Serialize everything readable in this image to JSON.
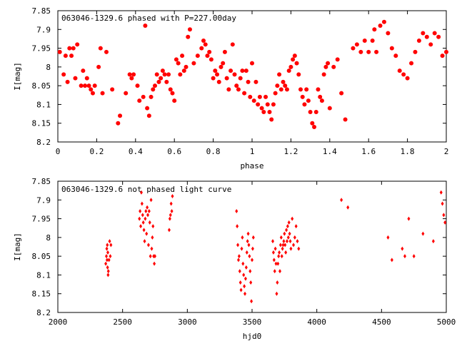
{
  "chart_data": [
    {
      "type": "scatter",
      "title": "063046-1329.6 phased with P=227.00day",
      "xlabel": "phase",
      "ylabel": "I[mag]",
      "xlim": [
        0,
        2
      ],
      "ylim": [
        8.2,
        7.85
      ],
      "y_inverted": true,
      "marker": "filled-circle",
      "color": "#ff0000",
      "xticks": [
        "0",
        "0.2",
        "0.4",
        "0.6",
        "0.8",
        "1",
        "1.2",
        "1.4",
        "1.6",
        "1.8",
        "2"
      ],
      "xtick_values": [
        0,
        0.2,
        0.4,
        0.6,
        0.8,
        1.0,
        1.2,
        1.4,
        1.6,
        1.8,
        2.0
      ],
      "yticks": [
        "7.85",
        "7.9",
        "7.95",
        "8",
        "8.05",
        "8.1",
        "8.15",
        "8.2"
      ],
      "ytick_values": [
        7.85,
        7.9,
        7.95,
        8.0,
        8.05,
        8.1,
        8.15,
        8.2
      ],
      "x": [
        0.01,
        0.03,
        0.04,
        0.05,
        0.06,
        0.07,
        0.08,
        0.09,
        0.1,
        0.12,
        0.13,
        0.14,
        0.15,
        0.16,
        0.17,
        0.18,
        0.19,
        0.21,
        0.22,
        0.23,
        0.25,
        0.28,
        0.31,
        0.32,
        0.35,
        0.37,
        0.38,
        0.39,
        0.41,
        0.42,
        0.44,
        0.45,
        0.46,
        0.47,
        0.48,
        0.49,
        0.5,
        0.51,
        0.52,
        0.53,
        0.54,
        0.55,
        0.56,
        0.57,
        0.58,
        0.59,
        0.6,
        0.61,
        0.62,
        0.63,
        0.64,
        0.65,
        0.66,
        0.67,
        0.68,
        0.7,
        0.72,
        0.74,
        0.75,
        0.76,
        0.77,
        0.78,
        0.79,
        0.8,
        0.81,
        0.82,
        0.83,
        0.84,
        0.85,
        0.86,
        0.87,
        0.88,
        0.89,
        0.9,
        0.91,
        0.92,
        0.93,
        0.94,
        0.95,
        0.96,
        0.97,
        0.98,
        0.99,
        1.0,
        1.01,
        1.02,
        1.03,
        1.04,
        1.05,
        1.06,
        1.07,
        1.08,
        1.09,
        1.1,
        1.11,
        1.12,
        1.13,
        1.14,
        1.15,
        1.16,
        1.17,
        1.18,
        1.19,
        1.2,
        1.21,
        1.22,
        1.23,
        1.24,
        1.25,
        1.26,
        1.27,
        1.28,
        1.29,
        1.3,
        1.31,
        1.32,
        1.33,
        1.34,
        1.35,
        1.36,
        1.37,
        1.38,
        1.39,
        1.4,
        1.42,
        1.44,
        1.46,
        1.48,
        1.52,
        1.54,
        1.56,
        1.58,
        1.6,
        1.62,
        1.63,
        1.64,
        1.66,
        1.68,
        1.7,
        1.72,
        1.74,
        1.76,
        1.78,
        1.8,
        1.82,
        1.84,
        1.86,
        1.88,
        1.9,
        1.92,
        1.94,
        1.96,
        1.98,
        2.0
      ],
      "y": [
        7.96,
        8.02,
        7.97,
        8.04,
        7.95,
        7.97,
        7.95,
        8.03,
        7.94,
        8.05,
        8.01,
        8.05,
        8.03,
        8.05,
        8.06,
        8.07,
        8.05,
        8.0,
        7.95,
        8.07,
        7.96,
        8.06,
        8.15,
        8.13,
        8.07,
        8.02,
        8.03,
        8.02,
        8.05,
        8.09,
        8.08,
        7.89,
        8.11,
        8.13,
        8.08,
        8.06,
        8.05,
        8.02,
        8.04,
        8.03,
        8.01,
        8.02,
        8.04,
        8.02,
        8.06,
        8.07,
        8.09,
        7.98,
        7.99,
        8.02,
        7.97,
        8.01,
        8.0,
        7.92,
        7.9,
        7.99,
        7.97,
        7.95,
        7.93,
        7.94,
        7.97,
        7.96,
        7.98,
        8.03,
        8.01,
        8.02,
        8.04,
        8.0,
        7.99,
        7.96,
        8.03,
        8.06,
        8.01,
        7.94,
        8.02,
        8.05,
        8.06,
        8.03,
        8.01,
        8.07,
        8.01,
        8.04,
        8.08,
        7.99,
        8.09,
        8.04,
        8.1,
        8.08,
        8.11,
        8.12,
        8.08,
        8.1,
        8.12,
        8.14,
        8.1,
        8.07,
        8.05,
        8.02,
        8.06,
        8.04,
        8.05,
        8.06,
        8.01,
        8.0,
        7.98,
        7.97,
        7.99,
        8.02,
        8.06,
        8.08,
        8.1,
        8.06,
        8.09,
        8.12,
        8.15,
        8.16,
        8.12,
        8.06,
        8.08,
        8.09,
        8.02,
        8.0,
        7.99,
        8.11,
        8.0,
        7.98,
        8.07,
        8.14,
        7.95,
        7.94,
        7.96,
        7.93,
        7.96,
        7.93,
        7.9,
        7.96,
        7.89,
        7.88,
        7.91,
        7.95,
        7.97,
        8.01,
        8.02,
        8.03,
        7.99,
        7.96,
        7.93,
        7.91,
        7.92,
        7.94,
        7.91,
        7.92,
        7.97,
        7.96
      ]
    },
    {
      "type": "scatter",
      "title": "063046-1329.6 not phased light curve",
      "xlabel": "hjd0",
      "ylabel": "I[mag]",
      "xlim": [
        2000,
        5000
      ],
      "ylim": [
        8.2,
        7.85
      ],
      "y_inverted": true,
      "marker": "filled-diamond",
      "color": "#ff0000",
      "xticks": [
        "2000",
        "2500",
        "3000",
        "3500",
        "4000",
        "4500",
        "5000"
      ],
      "xtick_values": [
        2000,
        2500,
        3000,
        3500,
        4000,
        4500,
        5000
      ],
      "yticks": [
        "7.85",
        "7.9",
        "7.95",
        "8",
        "8.05",
        "8.1",
        "8.15",
        "8.2"
      ],
      "ytick_values": [
        7.85,
        7.9,
        7.95,
        8.0,
        8.05,
        8.1,
        8.15,
        8.2
      ],
      "x": [
        2370,
        2375,
        2378,
        2380,
        2382,
        2384,
        2386,
        2388,
        2390,
        2395,
        2400,
        2405,
        2410,
        2630,
        2635,
        2640,
        2645,
        2650,
        2655,
        2660,
        2665,
        2670,
        2675,
        2680,
        2685,
        2690,
        2695,
        2700,
        2705,
        2710,
        2715,
        2720,
        2725,
        2730,
        2735,
        2740,
        2745,
        2750,
        2860,
        2865,
        2870,
        2875,
        2880,
        2885,
        3380,
        3385,
        3390,
        3395,
        3400,
        3405,
        3410,
        3415,
        3420,
        3425,
        3430,
        3435,
        3440,
        3445,
        3450,
        3455,
        3460,
        3465,
        3470,
        3475,
        3480,
        3485,
        3490,
        3495,
        3500,
        3505,
        3510,
        3660,
        3665,
        3670,
        3675,
        3680,
        3685,
        3690,
        3695,
        3700,
        3705,
        3710,
        3715,
        3720,
        3725,
        3730,
        3735,
        3740,
        3745,
        3750,
        3755,
        3760,
        3765,
        3770,
        3775,
        3780,
        3785,
        3790,
        3795,
        3800,
        3810,
        3820,
        3830,
        3840,
        3850,
        3860,
        4190,
        4240,
        4550,
        4580,
        4660,
        4680,
        4710,
        4750,
        4820,
        4900,
        4960,
        4970,
        4980,
        4990
      ],
      "y": [
        8.07,
        8.05,
        8.03,
        8.06,
        8.02,
        8.08,
        8.04,
        8.1,
        8.09,
        8.06,
        8.01,
        8.05,
        8.02,
        7.95,
        7.93,
        7.97,
        7.88,
        7.91,
        7.94,
        7.96,
        7.98,
        8.01,
        7.95,
        7.93,
        7.99,
        7.92,
        7.94,
        8.02,
        7.93,
        7.96,
        8.05,
        7.9,
        8.03,
        8.0,
        7.97,
        8.05,
        8.07,
        8.05,
        7.98,
        7.95,
        7.94,
        7.91,
        7.93,
        7.89,
        7.93,
        7.97,
        8.02,
        8.06,
        8.05,
        8.09,
        8.12,
        8.14,
        8.03,
        8.0,
        8.07,
        8.1,
        8.13,
        8.15,
        8.11,
        8.08,
        8.04,
        8.01,
        7.99,
        8.02,
        8.05,
        8.09,
        8.12,
        8.17,
        8.06,
        8.03,
        8.0,
        8.01,
        8.04,
        8.06,
        8.09,
        8.03,
        8.07,
        8.15,
        8.12,
        8.07,
        8.05,
        8.04,
        8.09,
        8.02,
        8.0,
        8.05,
        8.03,
        8.02,
        8.01,
        7.99,
        8.02,
        8.04,
        7.98,
        8.01,
        7.97,
        8.0,
        7.96,
        7.99,
        8.01,
        8.03,
        7.95,
        8.02,
        8.0,
        7.97,
        8.01,
        8.03,
        7.9,
        7.92,
        8.0,
        8.06,
        8.03,
        8.05,
        7.95,
        8.05,
        7.99,
        8.01,
        7.88,
        7.91,
        7.94,
        7.96
      ]
    }
  ]
}
